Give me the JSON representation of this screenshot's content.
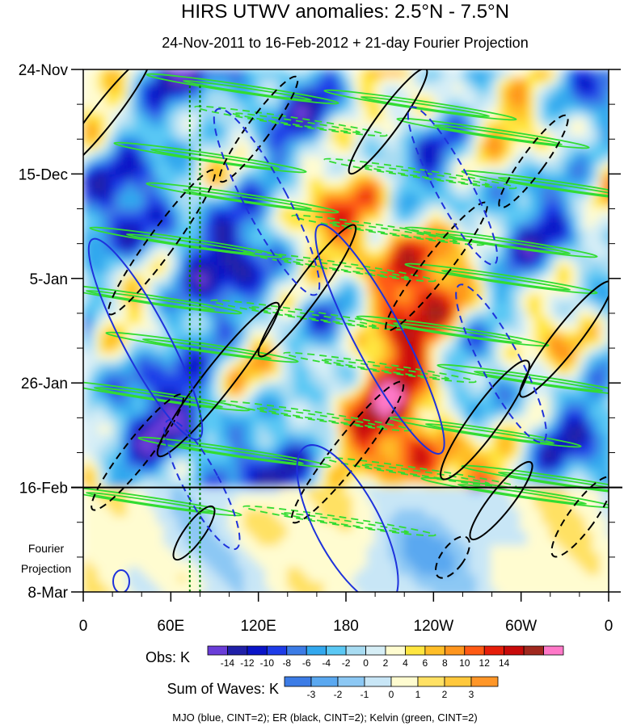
{
  "chart_data": {
    "type": "heatmap",
    "title": "HIRS UTWV anomalies: 2.5°N - 7.5°N",
    "subtitle": "24-Nov-2011 to 16-Feb-2012 + 21-day Fourier Projection",
    "x_ticks": [
      "0",
      "60E",
      "120E",
      "180",
      "120W",
      "60W",
      "0"
    ],
    "x_range": [
      0,
      360
    ],
    "x_tick_values": [
      0,
      60,
      120,
      180,
      240,
      300,
      360
    ],
    "y_ticks": [
      "24-Nov",
      "15-Dec",
      "5-Jan",
      "26-Jan",
      "16-Feb",
      "8-Mar"
    ],
    "y_tick_days": [
      0,
      21,
      42,
      63,
      84,
      105
    ],
    "y_range_days": [
      0,
      105
    ],
    "projection_start_day": 84,
    "projection_label_1": "Fourier",
    "projection_label_2": "Projection",
    "grid": false,
    "obs_colorbar": {
      "label": "Obs: K",
      "ticks": [
        "-14",
        "-12",
        "-10",
        "-8",
        "-6",
        "-4",
        "-2",
        "0",
        "2",
        "4",
        "6",
        "8",
        "10",
        "12",
        "14"
      ],
      "colors": [
        "#6a3dd8",
        "#2020a8",
        "#0a14c8",
        "#1e3ce8",
        "#3c7ce6",
        "#32a8ee",
        "#5ac8f4",
        "#a8dcf2",
        "#d6eef6",
        "#fffcd0",
        "#ffe640",
        "#ffbe28",
        "#ff961e",
        "#ff5a14",
        "#e61e0a",
        "#c80a0a",
        "#a0281e",
        "#ff78c8"
      ]
    },
    "waves_colorbar": {
      "label": "Sum of Waves: K",
      "ticks": [
        "-3",
        "-2",
        "-1",
        "0",
        "1",
        "2",
        "3"
      ],
      "colors": [
        "#3c7ce6",
        "#5aa8f0",
        "#8cc8f4",
        "#c8e6f6",
        "#fffcd0",
        "#ffe164",
        "#ffc83c",
        "#ff9628"
      ]
    },
    "legend_text": "MJO (blue, CINT=2); ER (black, CINT=2); Kelvin (green, CINT=2)",
    "series": [
      {
        "name": "MJO",
        "color": "#1e32dc"
      },
      {
        "name": "ER",
        "color": "#000000"
      },
      {
        "name": "Kelvin",
        "color": "#32dc32"
      }
    ],
    "reference_lines_lon": [
      73,
      80
    ]
  }
}
